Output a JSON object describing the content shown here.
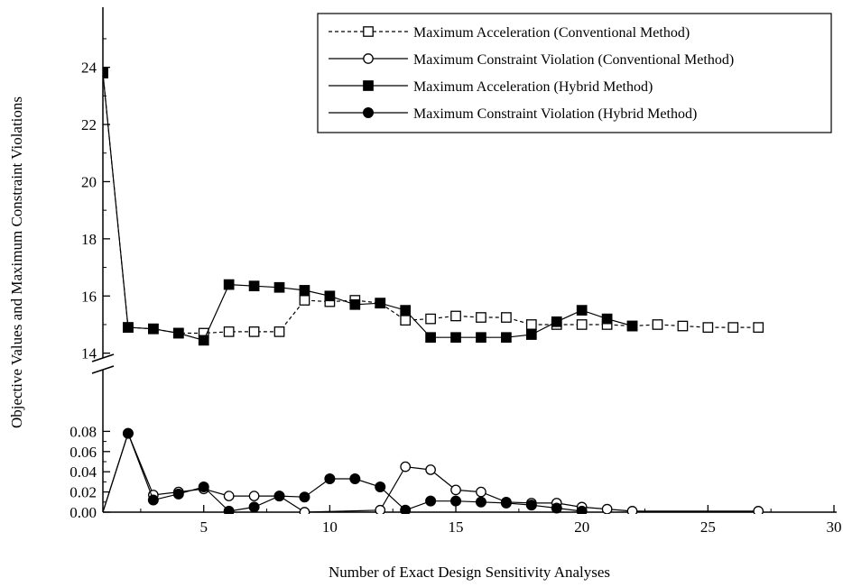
{
  "chart_data": {
    "type": "line",
    "xlabel": "Number of Exact Design Sensitivity Analyses",
    "ylabel": "Objective Values and Maximum Constraint Violations",
    "x_range": [
      1,
      30
    ],
    "x_ticks": [
      "5",
      "10",
      "15",
      "20",
      "25",
      "30"
    ],
    "upper_panel": {
      "y_range": [
        13.8,
        25
      ],
      "y_ticks": [
        "14",
        "16",
        "18",
        "20",
        "22",
        "24"
      ]
    },
    "lower_panel": {
      "y_range": [
        0,
        0.09
      ],
      "y_ticks": [
        "0.00",
        "0.02",
        "0.04",
        "0.06",
        "0.08"
      ]
    },
    "broken_axis": true,
    "legend_position": "top-right",
    "grid": false,
    "series": [
      {
        "name": "Maximum Acceleration (Conventional Method)",
        "panel": "upper",
        "marker": "open-square",
        "line": "dashed",
        "x": [
          1,
          2,
          3,
          4,
          5,
          6,
          7,
          8,
          9,
          10,
          11,
          12,
          13,
          14,
          15,
          16,
          17,
          18,
          19,
          20,
          21,
          22,
          23,
          24,
          25,
          26,
          27
        ],
        "y": [
          23.8,
          14.9,
          14.85,
          14.7,
          14.7,
          14.75,
          14.75,
          14.75,
          15.85,
          15.8,
          15.85,
          15.75,
          15.15,
          15.2,
          15.3,
          15.25,
          15.25,
          15.0,
          15.0,
          15.0,
          15.0,
          14.95,
          15.0,
          14.95,
          14.9,
          14.9,
          14.9
        ]
      },
      {
        "name": "Maximum Constraint Violation (Conventional Method)",
        "panel": "lower",
        "marker": "open-circle",
        "line": "solid",
        "x": [
          1,
          2,
          3,
          4,
          5,
          6,
          7,
          8,
          9,
          12,
          13,
          14,
          15,
          16,
          17,
          18,
          19,
          20,
          21,
          22,
          27
        ],
        "y": [
          0.0,
          0.078,
          0.017,
          0.02,
          0.023,
          0.016,
          0.016,
          0.016,
          0.0,
          0.002,
          0.045,
          0.042,
          0.022,
          0.02,
          0.01,
          0.009,
          0.009,
          0.005,
          0.003,
          0.001,
          0.001
        ]
      },
      {
        "name": "Maximum Acceleration (Hybrid Method)",
        "panel": "upper",
        "marker": "filled-square",
        "line": "solid",
        "x": [
          1,
          2,
          3,
          4,
          5,
          6,
          7,
          8,
          9,
          10,
          11,
          12,
          13,
          14,
          15,
          16,
          17,
          18,
          19,
          20,
          21,
          22
        ],
        "y": [
          23.8,
          14.9,
          14.85,
          14.7,
          14.45,
          16.4,
          16.35,
          16.3,
          16.2,
          16.0,
          15.7,
          15.75,
          15.5,
          14.55,
          14.55,
          14.55,
          14.55,
          14.65,
          15.1,
          15.5,
          15.2,
          14.95
        ]
      },
      {
        "name": "Maximum Constraint Violation (Hybrid Method)",
        "panel": "lower",
        "marker": "filled-circle",
        "line": "solid",
        "x": [
          1,
          2,
          3,
          4,
          5,
          6,
          7,
          8,
          9,
          10,
          11,
          12,
          13,
          14,
          15,
          16,
          17,
          18,
          19,
          20
        ],
        "y": [
          0.0,
          0.078,
          0.012,
          0.018,
          0.025,
          0.001,
          0.005,
          0.016,
          0.015,
          0.033,
          0.033,
          0.025,
          0.002,
          0.011,
          0.011,
          0.01,
          0.009,
          0.007,
          0.004,
          0.001
        ]
      }
    ]
  }
}
